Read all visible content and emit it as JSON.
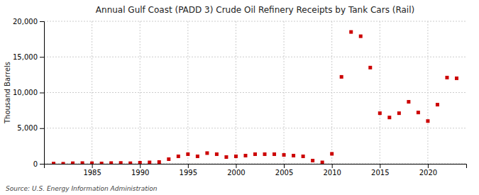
{
  "chart_data": {
    "type": "scatter",
    "title": "Annual Gulf Coast (PADD 3) Crude Oil Refinery Receipts by Tank Cars (Rail)",
    "ylabel": "Thousand Barrels",
    "source": "Source: U.S. Energy Information Administration",
    "x": [
      1981,
      1982,
      1983,
      1984,
      1985,
      1986,
      1987,
      1988,
      1989,
      1990,
      1991,
      1992,
      1993,
      1994,
      1995,
      1996,
      1997,
      1998,
      1999,
      2000,
      2001,
      2002,
      2003,
      2004,
      2005,
      2006,
      2007,
      2008,
      2009,
      2010,
      2011,
      2012,
      2013,
      2014,
      2015,
      2016,
      2017,
      2018,
      2019,
      2020,
      2021,
      2022,
      2023
    ],
    "values": [
      30,
      10,
      80,
      100,
      80,
      50,
      100,
      120,
      80,
      150,
      200,
      250,
      650,
      1050,
      1350,
      1050,
      1500,
      1350,
      950,
      1050,
      1150,
      1350,
      1350,
      1350,
      1250,
      1150,
      1050,
      450,
      200,
      1400,
      12200,
      18500,
      17900,
      13500,
      7100,
      6500,
      7100,
      8700,
      7200,
      6000,
      8300,
      12100,
      12000
    ],
    "color": "#cc0000",
    "marker": "square",
    "xlim": [
      1980,
      2024
    ],
    "xticks": [
      1985,
      1990,
      1995,
      2000,
      2005,
      2010,
      2015,
      2020
    ],
    "ylim": [
      0,
      20000
    ],
    "yticks": [
      0,
      {
        "value": 5000,
        "label": "5,000"
      },
      {
        "value": 10000,
        "label": "10,000"
      },
      {
        "value": 15000,
        "label": "15,000"
      },
      {
        "value": 20000,
        "label": "20,000"
      }
    ],
    "grid": true
  }
}
